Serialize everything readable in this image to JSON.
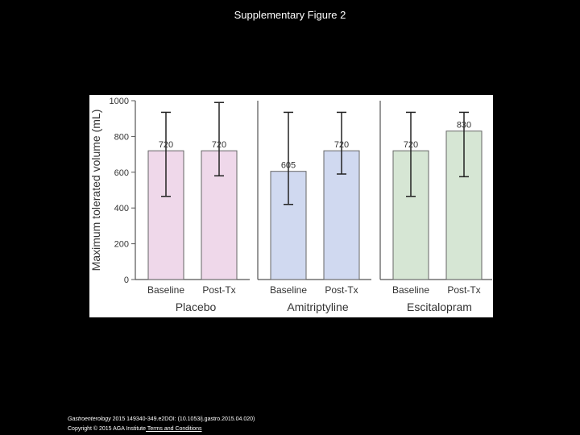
{
  "slide": {
    "title": "Supplementary Figure 2"
  },
  "chart_data": {
    "type": "bar",
    "ylabel": "Maximum tolerated volume (mL)",
    "ylim": [
      0,
      1000
    ],
    "yticks": [
      0,
      200,
      400,
      600,
      800,
      1000
    ],
    "grid": false,
    "legend": "none",
    "groups": [
      {
        "name": "Placebo",
        "color": "#efd8ea",
        "bars": [
          {
            "category": "Baseline",
            "value": 720,
            "label": "720",
            "err_low": 465,
            "err_high": 935
          },
          {
            "category": "Post-Tx",
            "value": 720,
            "label": "720",
            "err_low": 580,
            "err_high": 990
          }
        ]
      },
      {
        "name": "Amitriptyline",
        "color": "#d0d9f0",
        "bars": [
          {
            "category": "Baseline",
            "value": 605,
            "label": "605",
            "err_low": 420,
            "err_high": 935
          },
          {
            "category": "Post-Tx",
            "value": 720,
            "label": "720",
            "err_low": 590,
            "err_high": 935
          }
        ]
      },
      {
        "name": "Escitalopram",
        "color": "#d6e6d4",
        "bars": [
          {
            "category": "Baseline",
            "value": 720,
            "label": "720",
            "err_low": 465,
            "err_high": 935
          },
          {
            "category": "Post-Tx",
            "value": 830,
            "label": "830",
            "err_low": 575,
            "err_high": 935
          }
        ]
      }
    ]
  },
  "footer": {
    "journal": "Gastroenterology",
    "citation": " 2015 149340-349.e2DOI: (10.1053/j.gastro.2015.04.020)",
    "copyright": "Copyright © 2015 AGA Institute",
    "terms_link": " Terms and Conditions"
  }
}
